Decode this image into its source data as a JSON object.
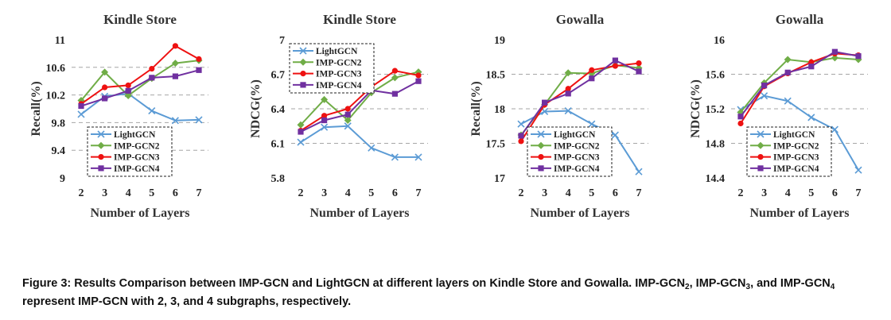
{
  "chart_data": [
    {
      "type": "line",
      "title": "Kindle Store",
      "xlabel": "Number of Layers",
      "ylabel": "Recall(%)",
      "x": [
        2,
        3,
        4,
        5,
        6,
        7
      ],
      "ylim": [
        9,
        11
      ],
      "yticks": [
        "9",
        "9.4",
        "9.8",
        "10.2",
        "10.6",
        "11"
      ],
      "grid": "horizontal-dashed",
      "legend_position": "bottom-left",
      "series": [
        {
          "name": "LightGCN",
          "values": [
            9.92,
            10.18,
            10.22,
            9.97,
            9.83,
            9.84
          ]
        },
        {
          "name": "IMP-GCN2",
          "values": [
            10.12,
            10.53,
            10.19,
            10.44,
            10.66,
            10.7
          ]
        },
        {
          "name": "IMP-GCN3",
          "values": [
            10.07,
            10.31,
            10.34,
            10.58,
            10.91,
            10.72
          ]
        },
        {
          "name": "IMP-GCN4",
          "values": [
            10.04,
            10.15,
            10.26,
            10.45,
            10.47,
            10.56
          ]
        }
      ]
    },
    {
      "type": "line",
      "title": "Kindle Store",
      "xlabel": "Number  of Layers",
      "ylabel": "NDCG(%)",
      "x": [
        2,
        3,
        4,
        5,
        6,
        7
      ],
      "ylim": [
        5.8,
        7
      ],
      "yticks": [
        "5.8",
        "6.1",
        "6.4",
        "6.7",
        "7"
      ],
      "grid": "horizontal-dashed",
      "legend_position": "top-left",
      "series": [
        {
          "name": "LightGCN",
          "values": [
            6.11,
            6.24,
            6.25,
            6.06,
            5.98,
            5.98
          ]
        },
        {
          "name": "IMP-GCN2",
          "values": [
            6.26,
            6.48,
            6.3,
            6.54,
            6.67,
            6.72
          ]
        },
        {
          "name": "IMP-GCN3",
          "values": [
            6.21,
            6.34,
            6.4,
            6.59,
            6.73,
            6.69
          ]
        },
        {
          "name": "IMP-GCN4",
          "values": [
            6.2,
            6.3,
            6.35,
            6.56,
            6.53,
            6.64
          ]
        }
      ]
    },
    {
      "type": "line",
      "title": "Gowalla",
      "xlabel": "Number of Layers",
      "ylabel": "Recall(%)",
      "x": [
        2,
        3,
        4,
        5,
        6,
        7
      ],
      "ylim": [
        17,
        19
      ],
      "yticks": [
        "17",
        "17.5",
        "18",
        "18.5",
        "19"
      ],
      "grid": "horizontal-dashed",
      "legend_position": "bottom-left",
      "series": [
        {
          "name": "LightGCN",
          "values": [
            17.78,
            17.96,
            17.97,
            17.78,
            17.62,
            17.09
          ]
        },
        {
          "name": "IMP-GCN2",
          "values": [
            17.62,
            18.06,
            18.52,
            18.51,
            18.63,
            18.59
          ]
        },
        {
          "name": "IMP-GCN3",
          "values": [
            17.53,
            18.06,
            18.29,
            18.56,
            18.62,
            18.66
          ]
        },
        {
          "name": "IMP-GCN4",
          "values": [
            17.61,
            18.09,
            18.22,
            18.44,
            18.7,
            18.54
          ]
        }
      ]
    },
    {
      "type": "line",
      "title": "Gowalla",
      "xlabel": "Number of Layers",
      "ylabel": "NDCG(%)",
      "x": [
        2,
        3,
        4,
        5,
        6,
        7
      ],
      "ylim": [
        14.4,
        16
      ],
      "yticks": [
        "14.4",
        "14.8",
        "15.2",
        "15.6",
        "16"
      ],
      "grid": "horizontal-dashed",
      "legend_position": "bottom-left",
      "series": [
        {
          "name": "LightGCN",
          "values": [
            15.19,
            15.35,
            15.29,
            15.1,
            14.96,
            14.49
          ]
        },
        {
          "name": "IMP-GCN2",
          "values": [
            15.16,
            15.5,
            15.77,
            15.74,
            15.79,
            15.77
          ]
        },
        {
          "name": "IMP-GCN3",
          "values": [
            15.03,
            15.46,
            15.61,
            15.74,
            15.84,
            15.82
          ]
        },
        {
          "name": "IMP-GCN4",
          "values": [
            15.11,
            15.47,
            15.62,
            15.69,
            15.86,
            15.81
          ]
        }
      ]
    }
  ],
  "series_styles": [
    {
      "color": "#5b9bd5",
      "marker": "x"
    },
    {
      "color": "#70ad47",
      "marker": "diamond"
    },
    {
      "color": "#ee1111",
      "marker": "circle"
    },
    {
      "color": "#7030a0",
      "marker": "square"
    }
  ],
  "caption": {
    "prefix": "Figure 3: Results Comparison between IMP-GCN and LightGCN at different layers on Kindle Store and Gowalla. IMP-GCN",
    "sub1": "2",
    "mid1": ", IMP-GCN",
    "sub2": "3",
    "mid2": ", and IMP-GCN",
    "sub3": "4",
    "suffix": " represent IMP-GCN with 2, 3, and 4 subgraphs, respectively."
  }
}
